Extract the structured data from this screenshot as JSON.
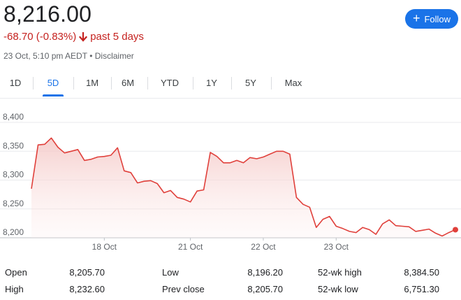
{
  "quote": {
    "price": "8,216.00",
    "change": "-68.70 (-0.83%)",
    "period": "past 5 days",
    "timestamp": "23 Oct, 5:10 pm AEDT",
    "separator": "•",
    "disclaimer": "Disclaimer",
    "negative_color": "#c5221f"
  },
  "follow_button": {
    "label": "Follow",
    "icon": "plus-icon",
    "color": "#1a73e8"
  },
  "range_tabs": [
    {
      "label": "1D",
      "active": false
    },
    {
      "label": "5D",
      "active": true
    },
    {
      "label": "1M",
      "active": false
    },
    {
      "label": "6M",
      "active": false
    },
    {
      "label": "YTD",
      "active": false
    },
    {
      "label": "1Y",
      "active": false
    },
    {
      "label": "5Y",
      "active": false
    },
    {
      "label": "Max",
      "active": false
    }
  ],
  "chart_data": {
    "type": "area",
    "y_ticks": [
      "8,400",
      "8,350",
      "8,300",
      "8,250",
      "8,200"
    ],
    "ylim": [
      8200,
      8400
    ],
    "x_ticks": [
      {
        "label": "18 Oct",
        "index": 11
      },
      {
        "label": "21 Oct",
        "index": 24
      },
      {
        "label": "22 Oct",
        "index": 35
      },
      {
        "label": "23 Oct",
        "index": 46
      }
    ],
    "values": [
      8285,
      8361,
      8362,
      8373,
      8357,
      8347,
      8350,
      8353,
      8334,
      8336,
      8340,
      8341,
      8343,
      8356,
      8316,
      8313,
      8295,
      8298,
      8299,
      8294,
      8278,
      8282,
      8270,
      8267,
      8262,
      8281,
      8283,
      8348,
      8341,
      8330,
      8330,
      8334,
      8330,
      8339,
      8337,
      8340,
      8345,
      8350,
      8350,
      8345,
      8270,
      8258,
      8253,
      8218,
      8232,
      8237,
      8220,
      8216,
      8211,
      8209,
      8218,
      8214,
      8206,
      8224,
      8231,
      8221,
      8220,
      8219,
      8211,
      8213,
      8215,
      8208,
      8203,
      8209,
      8214
    ],
    "grid": true,
    "line_color": "#e0403b"
  },
  "stats": [
    {
      "label": "Open",
      "value": "8,205.70"
    },
    {
      "label": "High",
      "value": "8,232.60"
    },
    {
      "label": "Low",
      "value": "8,196.20"
    },
    {
      "label": "Prev close",
      "value": "8,205.70"
    },
    {
      "label": "52-wk high",
      "value": "8,384.50"
    },
    {
      "label": "52-wk low",
      "value": "6,751.30"
    }
  ]
}
